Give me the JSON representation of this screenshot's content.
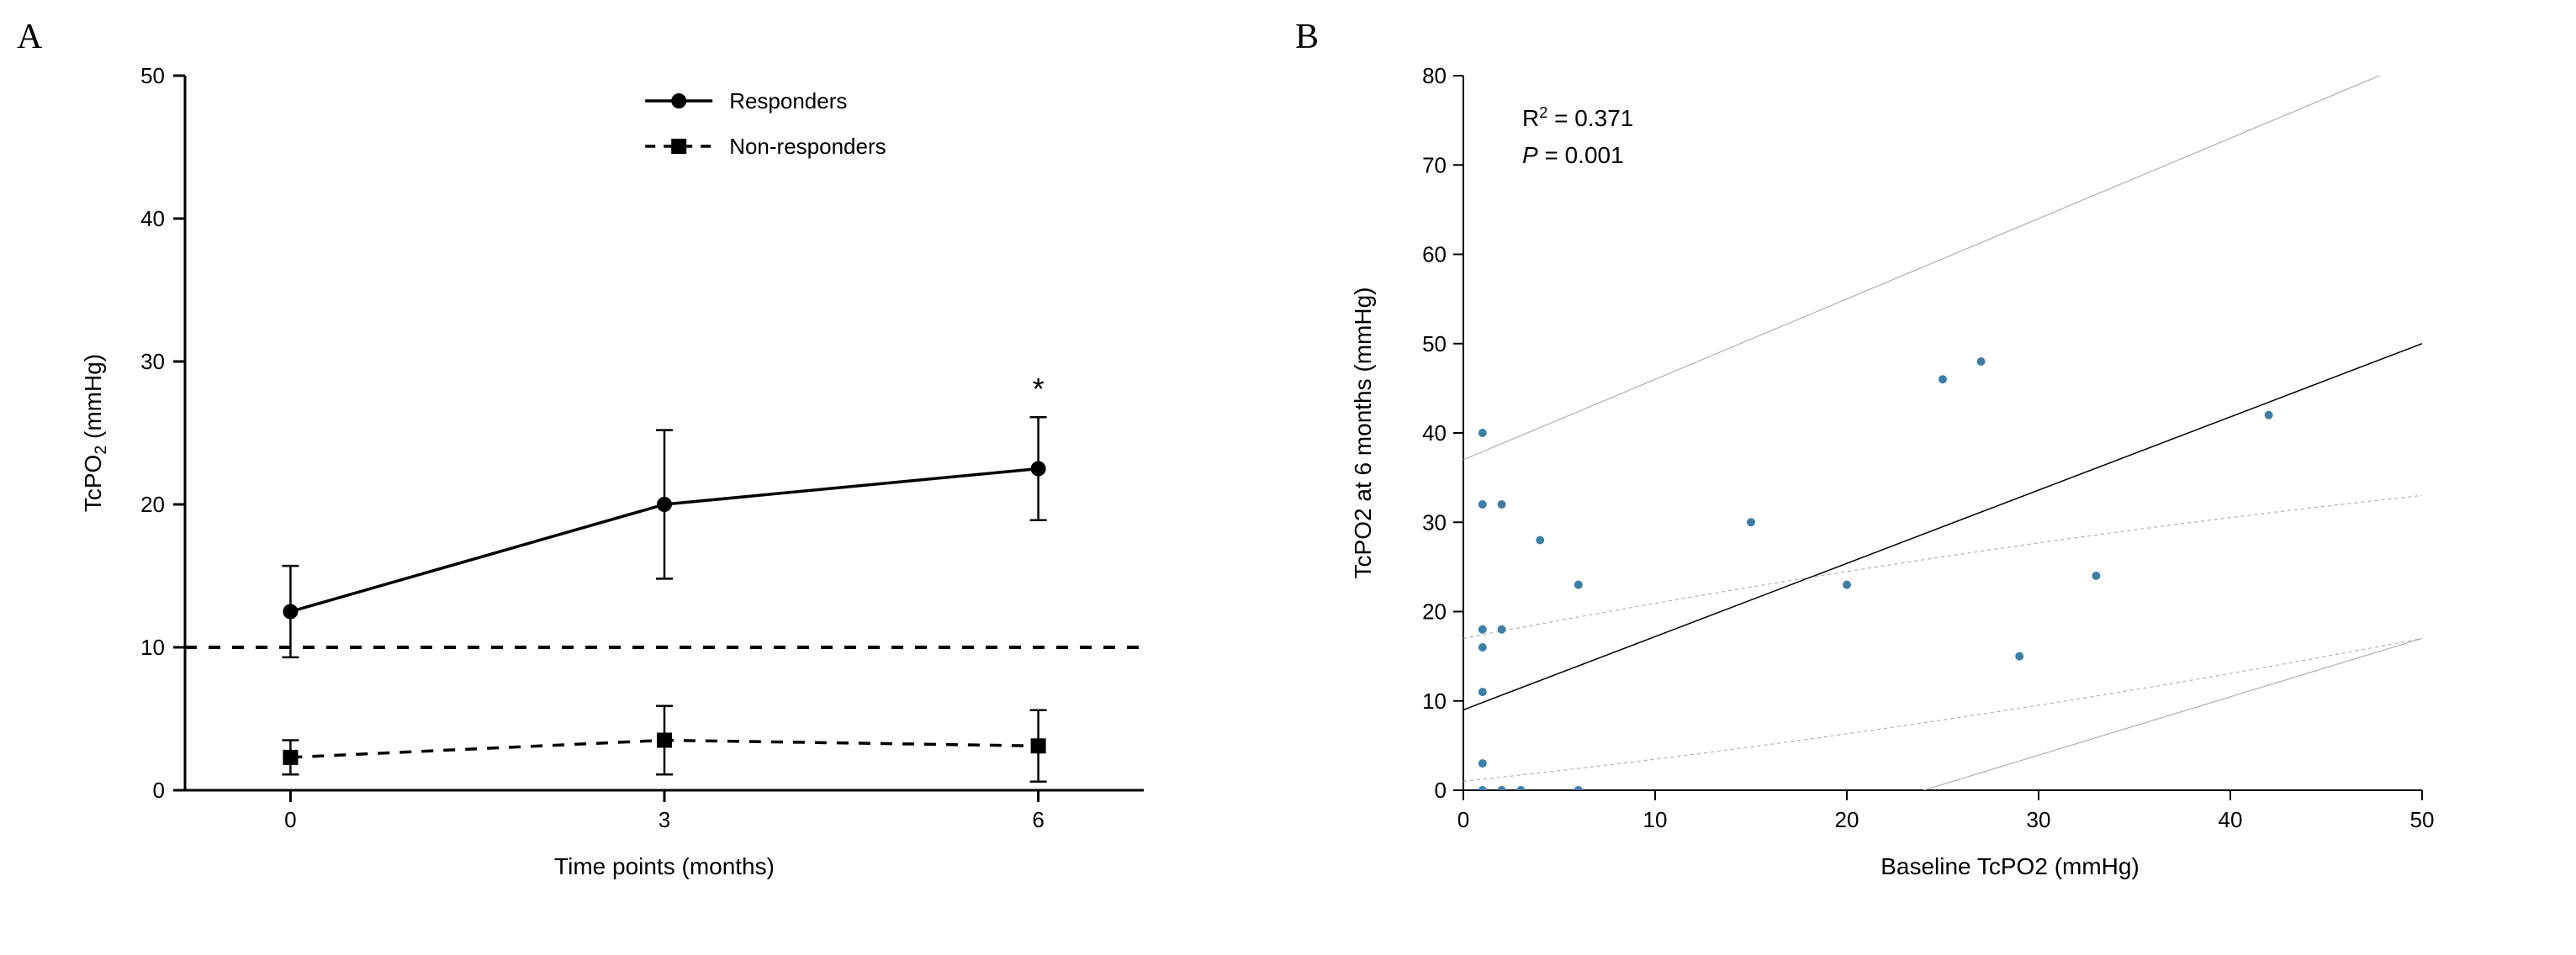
{
  "panelA": {
    "label": "A",
    "type": "line",
    "title": "",
    "x_categories": [
      "0",
      "3",
      "6"
    ],
    "xlabel": "Time points (months)",
    "ylabel": "TcPO",
    "ylabel_sub": "2",
    "ylabel_unit": " (mmHg)",
    "ylim": [
      0,
      50
    ],
    "ytick_step": 10,
    "reference_y": 10,
    "series": [
      {
        "name": "Responders",
        "marker": "circle",
        "line_dash": "solid",
        "color": "#000000",
        "points": [
          {
            "x": 0,
            "y": 12.5,
            "err": 3.2
          },
          {
            "x": 1,
            "y": 20.0,
            "err": 5.2
          },
          {
            "x": 2,
            "y": 22.5,
            "err": 3.6
          }
        ],
        "annotations": [
          {
            "x": 2,
            "y": 27,
            "text": "*"
          }
        ]
      },
      {
        "name": "Non-responders",
        "marker": "square",
        "line_dash": "dashed",
        "color": "#000000",
        "points": [
          {
            "x": 0,
            "y": 2.3,
            "err": 1.2
          },
          {
            "x": 1,
            "y": 3.5,
            "err": 2.4
          },
          {
            "x": 2,
            "y": 3.1,
            "err": 2.5
          }
        ],
        "annotations": []
      }
    ],
    "legend": [
      {
        "marker": "circle",
        "dash": "solid",
        "label": "Responders"
      },
      {
        "marker": "square",
        "dash": "dashed",
        "label": "Non-responders"
      }
    ],
    "axis_color": "#000000",
    "axis_width": 3,
    "tick_fontsize": 26,
    "label_fontsize": 28,
    "legend_fontsize": 26,
    "marker_size": 9,
    "line_width": 3.5,
    "errbar_width": 2.5,
    "errbar_cap": 10
  },
  "panelB": {
    "label": "B",
    "type": "scatter",
    "xlabel": "Baseline TcPO2 (mmHg)",
    "ylabel": "TcPO2 at 6 months (mmHg)",
    "xlim": [
      0,
      50
    ],
    "ylim": [
      0,
      80
    ],
    "xtick_step": 10,
    "ytick_step": 10,
    "point_color": "#3d7ea6",
    "point_radius": 5,
    "points": [
      {
        "x": 1,
        "y": 40
      },
      {
        "x": 1,
        "y": 32
      },
      {
        "x": 1,
        "y": 18
      },
      {
        "x": 1,
        "y": 16
      },
      {
        "x": 1,
        "y": 11
      },
      {
        "x": 1,
        "y": 3
      },
      {
        "x": 1,
        "y": 0
      },
      {
        "x": 2,
        "y": 32
      },
      {
        "x": 2,
        "y": 18
      },
      {
        "x": 2,
        "y": 0
      },
      {
        "x": 3,
        "y": 0
      },
      {
        "x": 4,
        "y": 28
      },
      {
        "x": 6,
        "y": 23
      },
      {
        "x": 6,
        "y": 23
      },
      {
        "x": 6,
        "y": 0
      },
      {
        "x": 15,
        "y": 30
      },
      {
        "x": 20,
        "y": 23
      },
      {
        "x": 25,
        "y": 46
      },
      {
        "x": 27,
        "y": 48
      },
      {
        "x": 29,
        "y": 15
      },
      {
        "x": 33,
        "y": 24
      },
      {
        "x": 42,
        "y": 42
      }
    ],
    "regression": {
      "slope": 0.82,
      "intercept": 9.0,
      "color": "#000000",
      "width": 1.5
    },
    "ci_curves": {
      "color": "#b0b0b0",
      "dash": "4,4",
      "width": 1.2,
      "upper_at_x0": 17,
      "upper_at_x50": 33,
      "lower_at_x0": 1,
      "lower_at_x50": 17,
      "ci_bow": 6
    },
    "pred_curves": {
      "color": "#b0b0b0",
      "dash": "",
      "width": 1.2,
      "upper_at_x0": 37,
      "upper_at_x50": 82,
      "lower_intercept_x": 24,
      "lower_at_x50": 17
    },
    "stats_text": [
      {
        "text": "R",
        "sup": "2",
        "rest": " = 0.371"
      },
      {
        "italic": "P",
        "rest": "  = 0.001"
      }
    ],
    "stats_fontsize": 28,
    "axis_color": "#000000",
    "axis_width": 2,
    "tick_fontsize": 26,
    "label_fontsize": 28
  }
}
